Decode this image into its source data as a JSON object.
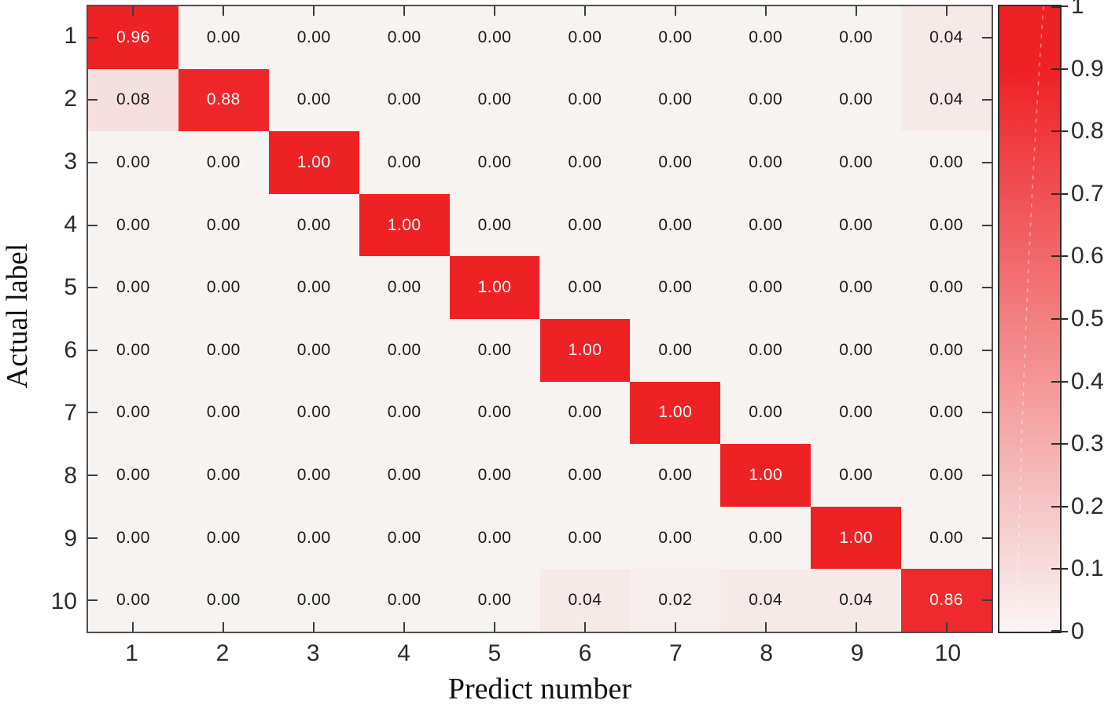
{
  "chart_data": {
    "type": "heatmap",
    "title": "",
    "xlabel": "Predict number",
    "ylabel": "Actual label",
    "x_ticks": [
      "1",
      "2",
      "3",
      "4",
      "5",
      "6",
      "7",
      "8",
      "9",
      "10"
    ],
    "y_ticks": [
      "1",
      "2",
      "3",
      "4",
      "5",
      "6",
      "7",
      "8",
      "9",
      "10"
    ],
    "matrix": [
      [
        0.96,
        0.0,
        0.0,
        0.0,
        0.0,
        0.0,
        0.0,
        0.0,
        0.0,
        0.04
      ],
      [
        0.08,
        0.88,
        0.0,
        0.0,
        0.0,
        0.0,
        0.0,
        0.0,
        0.0,
        0.04
      ],
      [
        0.0,
        0.0,
        1.0,
        0.0,
        0.0,
        0.0,
        0.0,
        0.0,
        0.0,
        0.0
      ],
      [
        0.0,
        0.0,
        0.0,
        1.0,
        0.0,
        0.0,
        0.0,
        0.0,
        0.0,
        0.0
      ],
      [
        0.0,
        0.0,
        0.0,
        0.0,
        1.0,
        0.0,
        0.0,
        0.0,
        0.0,
        0.0
      ],
      [
        0.0,
        0.0,
        0.0,
        0.0,
        0.0,
        1.0,
        0.0,
        0.0,
        0.0,
        0.0
      ],
      [
        0.0,
        0.0,
        0.0,
        0.0,
        0.0,
        0.0,
        1.0,
        0.0,
        0.0,
        0.0
      ],
      [
        0.0,
        0.0,
        0.0,
        0.0,
        0.0,
        0.0,
        0.0,
        1.0,
        0.0,
        0.0
      ],
      [
        0.0,
        0.0,
        0.0,
        0.0,
        0.0,
        0.0,
        0.0,
        0.0,
        1.0,
        0.0
      ],
      [
        0.0,
        0.0,
        0.0,
        0.0,
        0.0,
        0.04,
        0.02,
        0.04,
        0.04,
        0.86
      ]
    ],
    "value_decimals": 2,
    "colorbar": {
      "min": 0,
      "max": 1,
      "tick_labels": [
        "1",
        "0.9",
        "0.8",
        "0.7",
        "0.6",
        "0.5",
        "0.4",
        "0.3",
        "0.2",
        "0.1",
        "0"
      ],
      "tick_values": [
        1,
        0.9,
        0.8,
        0.7,
        0.6,
        0.5,
        0.4,
        0.3,
        0.2,
        0.1,
        0
      ],
      "position": "right"
    },
    "layout": {
      "grid": "off",
      "legend": "none"
    },
    "colors": {
      "high": "#ee2125",
      "low": "#f6f3f1",
      "colorbar_low": "#f8f5f4",
      "text_on_red": "#ffffff",
      "text_dark": "#1a1a1a"
    }
  }
}
